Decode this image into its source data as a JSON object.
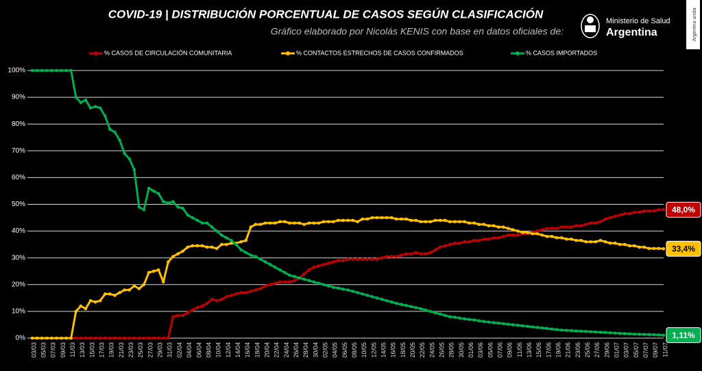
{
  "chart_data": {
    "type": "line",
    "title": "COVID-19  |  DISTRIBUCIÓN PORCENTUAL DE CASOS SEGÚN CLASIFICACIÓN",
    "subtitle": "Gráfico elaborado por Nicolás KENIS con base en datos oficiales de:",
    "logo_lines": [
      "Ministerio de Salud",
      "Argentina"
    ],
    "badge": "Argentina unida",
    "grid": true,
    "ylim": [
      0,
      100
    ],
    "yticks": [
      {
        "value": 0,
        "label": "0%"
      },
      {
        "value": 10,
        "label": "10%"
      },
      {
        "value": 20,
        "label": "20%"
      },
      {
        "value": 30,
        "label": "30%"
      },
      {
        "value": 40,
        "label": "40%"
      },
      {
        "value": 50,
        "label": "50%"
      },
      {
        "value": 60,
        "label": "60%"
      },
      {
        "value": 70,
        "label": "70%"
      },
      {
        "value": 80,
        "label": "80%"
      },
      {
        "value": 90,
        "label": "90%"
      },
      {
        "value": 100,
        "label": "100%"
      }
    ],
    "categories": [
      "03/03",
      null,
      "05/03",
      null,
      "07/03",
      null,
      "09/03",
      null,
      "11/03",
      null,
      "13/03",
      null,
      "15/03",
      null,
      "17/03",
      null,
      "19/03",
      null,
      "21/03",
      null,
      "23/03",
      null,
      "25/03",
      null,
      "27/03",
      null,
      "29/03",
      null,
      "31/03",
      null,
      "02/04",
      null,
      "04/04",
      null,
      "06/04",
      null,
      "08/04",
      null,
      "10/04",
      null,
      "12/04",
      null,
      "14/04",
      null,
      "16/04",
      null,
      "18/04",
      null,
      "20/04",
      null,
      "22/04",
      null,
      "24/04",
      null,
      "26/04",
      null,
      "28/04",
      null,
      "30/04",
      null,
      "02/05",
      null,
      "04/05",
      null,
      "06/05",
      null,
      "08/05",
      null,
      "10/05",
      null,
      "12/05",
      null,
      "14/05",
      null,
      "16/05",
      null,
      "18/05",
      null,
      "20/05",
      null,
      "22/05",
      null,
      "24/05",
      null,
      "26/05",
      null,
      "28/05",
      null,
      "30/05",
      null,
      "01/06",
      null,
      "03/06",
      null,
      "05/06",
      null,
      "07/06",
      null,
      "09/06",
      null,
      "11/06",
      null,
      "13/06",
      null,
      "15/06",
      null,
      "17/06",
      null,
      "19/06",
      null,
      "21/06",
      null,
      "23/06",
      null,
      "25/06",
      null,
      "27/06",
      null,
      "29/06",
      null,
      "01/07",
      null,
      "03/07",
      null,
      "05/07",
      null,
      "07/07",
      null,
      "09/07",
      null,
      "11/07"
    ],
    "series": [
      {
        "name": "% CASOS DE CIRCULACIÓN COMUNITARIA",
        "color": "#c00000",
        "end_label": "48,0%",
        "values": [
          0,
          0,
          0,
          0,
          0,
          0,
          0,
          0,
          0,
          0,
          0,
          0,
          0,
          0,
          0,
          0,
          0,
          0,
          0,
          0,
          0,
          0,
          0,
          0,
          0,
          0,
          0,
          0,
          0,
          8,
          8.5,
          8.5,
          9.5,
          10.5,
          11.5,
          12,
          13,
          14.5,
          14,
          14.5,
          15.5,
          16,
          16.5,
          17,
          17,
          17.5,
          18,
          18.5,
          19.5,
          20,
          20.5,
          21,
          21,
          21,
          21.5,
          22.5,
          24,
          25.5,
          26.5,
          27,
          27.5,
          28,
          28.5,
          29,
          29,
          29.5,
          29.5,
          29.5,
          29.5,
          29.5,
          29.5,
          29.5,
          30,
          30.5,
          30.5,
          30.5,
          31,
          31.5,
          31.5,
          32,
          31.5,
          31.5,
          32,
          33,
          34,
          34.5,
          35,
          35.5,
          35.5,
          36,
          36,
          36.5,
          36.5,
          37,
          37,
          37.5,
          37.5,
          38,
          38.5,
          38.5,
          38.5,
          39,
          39,
          39.5,
          40,
          40.5,
          41,
          41,
          41,
          41.5,
          41.5,
          41.5,
          42,
          42,
          42.5,
          43,
          43,
          43.5,
          44.5,
          45,
          45.5,
          46,
          46.5,
          46.5,
          47,
          47,
          47.5,
          47.5,
          47.5,
          48,
          48.0
        ]
      },
      {
        "name": "% CONTACTOS ESTRECHOS DE CASOS CONFIRMADOS",
        "color": "#ffc000",
        "end_label": "33,4%",
        "values": [
          0,
          0,
          0,
          0,
          0,
          0,
          0,
          0,
          0,
          10,
          12,
          11,
          14,
          13.5,
          14,
          16.5,
          16.5,
          16,
          17,
          18,
          18,
          19.5,
          18.5,
          20,
          24.5,
          25,
          25.5,
          21,
          28.5,
          30.5,
          31.5,
          32.5,
          34,
          34.5,
          34.5,
          34.5,
          34,
          34,
          33.5,
          35,
          35,
          35.5,
          35.5,
          36,
          36.5,
          41.5,
          42.5,
          42.5,
          43,
          43,
          43,
          43.5,
          43.5,
          43,
          43,
          43,
          42.5,
          43,
          43,
          43,
          43.5,
          43.5,
          43.5,
          44,
          44,
          44,
          44,
          43.5,
          44.5,
          44.5,
          45,
          45,
          45,
          45,
          45,
          44.5,
          44.5,
          44.5,
          44,
          44,
          43.5,
          43.5,
          43.5,
          44,
          44,
          44,
          43.5,
          43.5,
          43.5,
          43.5,
          43,
          43,
          42.5,
          42.5,
          42,
          42,
          41.5,
          41.5,
          41,
          40.5,
          40,
          39.5,
          39.5,
          39,
          39,
          38.5,
          38,
          38,
          37.5,
          37.5,
          37,
          37,
          36.5,
          36.5,
          36,
          36,
          36,
          36.5,
          36,
          35.5,
          35.5,
          35,
          35,
          34.5,
          34.5,
          34,
          34,
          33.5,
          33.5,
          33.5,
          33.4
        ]
      },
      {
        "name": "% CASOS IMPORTADOS",
        "color": "#00b050",
        "end_label": "1,11%",
        "values": [
          100,
          100,
          100,
          100,
          100,
          100,
          100,
          100,
          100,
          90,
          88,
          89,
          86,
          86.5,
          86,
          83,
          78,
          77,
          74,
          69,
          67,
          63,
          49,
          48,
          56,
          55,
          54,
          51,
          50.5,
          51,
          49,
          48.5,
          46,
          45,
          44,
          43,
          43,
          41.5,
          40,
          38.5,
          37.5,
          36.5,
          35,
          33,
          32,
          31,
          30.5,
          29.5,
          28.5,
          27.5,
          26.5,
          25.5,
          24.5,
          23.5,
          23,
          22.5,
          22,
          21.5,
          21,
          20.5,
          20,
          19.5,
          19,
          18.7,
          18.3,
          18,
          17.5,
          17,
          16.5,
          16,
          15.5,
          15,
          14.5,
          14,
          13.5,
          13,
          12.6,
          12.2,
          11.8,
          11.4,
          11,
          10.5,
          10,
          9.5,
          9,
          8.5,
          8,
          7.8,
          7.5,
          7.2,
          7,
          6.8,
          6.5,
          6.2,
          6,
          5.8,
          5.6,
          5.4,
          5.2,
          5,
          4.8,
          4.6,
          4.4,
          4.2,
          4,
          3.8,
          3.6,
          3.4,
          3.2,
          3,
          2.9,
          2.8,
          2.7,
          2.6,
          2.5,
          2.4,
          2.3,
          2.2,
          2.1,
          2,
          1.9,
          1.8,
          1.7,
          1.6,
          1.5,
          1.45,
          1.4,
          1.35,
          1.3,
          1.2,
          1.11
        ]
      }
    ]
  }
}
